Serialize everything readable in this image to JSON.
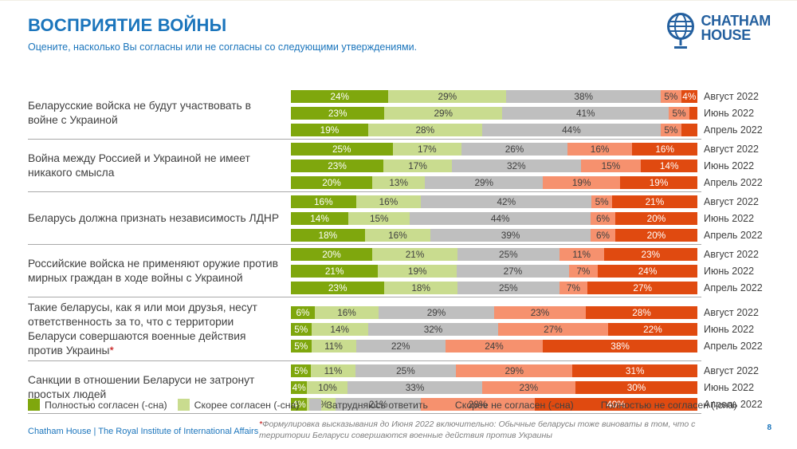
{
  "header": {
    "title": "ВОСПРИЯТИЕ ВОЙНЫ",
    "subtitle": "Оцените, насколько Вы согласны или не согласны со следующими утверждениями.",
    "logo_line1": "CHATHAM",
    "logo_line2": "HOUSE"
  },
  "colors": {
    "accent_blue": "#1b75bc",
    "logo_blue": "#24609f",
    "text_dark": "#404040",
    "divider_gray": "#a9a9a9",
    "footnote_gray": "#7f7f7f",
    "asterisk_red": "#c00000"
  },
  "chart_data": {
    "type": "bar",
    "stacked": true,
    "orientation": "horizontal",
    "unit": "%",
    "series_names": [
      "Полностью согласен (-сна)",
      "Скорее согласен (-сна)",
      "Затрудняюсь ответить",
      "Скорее не согласен (-сна)",
      "Полностью не согласен (-сна)"
    ],
    "series_colors": [
      "#7fa70d",
      "#c9dc8f",
      "#bfbfbf",
      "#f6916e",
      "#e04a10"
    ],
    "series_label_colors": [
      "#ffffff",
      "#404040",
      "#404040",
      "#404040",
      "#ffffff"
    ],
    "legend_position": "bottom",
    "groups": [
      {
        "label": "Беларусские войска не будут участвовать в войне с Украиной",
        "asterisk": "",
        "rows": [
          {
            "period": "Август 2022",
            "values": [
              24,
              29,
              38,
              5,
              4
            ],
            "labels": [
              "24%",
              "29%",
              "38%",
              "5%",
              "4%"
            ]
          },
          {
            "period": "Июнь 2022",
            "values": [
              23,
              29,
              41,
              5,
              2
            ],
            "labels": [
              "23%",
              "29%",
              "41%",
              "5%",
              ""
            ]
          },
          {
            "period": "Апрель 2022",
            "values": [
              19,
              28,
              44,
              5,
              4
            ],
            "labels": [
              "19%",
              "28%",
              "44%",
              "5%",
              ""
            ]
          }
        ]
      },
      {
        "label": "Война между Россией и Украиной не имеет никакого смысла",
        "asterisk": "",
        "rows": [
          {
            "period": "Август 2022",
            "values": [
              25,
              17,
              26,
              16,
              16
            ],
            "labels": [
              "25%",
              "17%",
              "26%",
              "16%",
              "16%"
            ]
          },
          {
            "period": "Июнь 2022",
            "values": [
              23,
              17,
              32,
              15,
              14
            ],
            "labels": [
              "23%",
              "17%",
              "32%",
              "15%",
              "14%"
            ]
          },
          {
            "period": "Апрель 2022",
            "values": [
              20,
              13,
              29,
              19,
              19
            ],
            "labels": [
              "20%",
              "13%",
              "29%",
              "19%",
              "19%"
            ]
          }
        ]
      },
      {
        "label": "Беларусь должна признать независимость ЛДНР",
        "asterisk": "",
        "rows": [
          {
            "period": "Август 2022",
            "values": [
              16,
              16,
              42,
              5,
              21
            ],
            "labels": [
              "16%",
              "16%",
              "42%",
              "5%",
              "21%"
            ]
          },
          {
            "period": "Июнь 2022",
            "values": [
              14,
              15,
              44,
              6,
              20
            ],
            "labels": [
              "14%",
              "15%",
              "44%",
              "6%",
              "20%"
            ]
          },
          {
            "period": "Апрель 2022",
            "values": [
              18,
              16,
              39,
              6,
              20
            ],
            "labels": [
              "18%",
              "16%",
              "39%",
              "6%",
              "20%"
            ]
          }
        ]
      },
      {
        "label": "Российские войска не применяют оружие против мирных граждан в ходе войны с Украиной",
        "asterisk": "",
        "rows": [
          {
            "period": "Август 2022",
            "values": [
              20,
              21,
              25,
              11,
              23
            ],
            "labels": [
              "20%",
              "21%",
              "25%",
              "11%",
              "23%"
            ]
          },
          {
            "period": "Июнь 2022",
            "values": [
              21,
              19,
              27,
              7,
              24
            ],
            "labels": [
              "21%",
              "19%",
              "27%",
              "7%",
              "24%"
            ]
          },
          {
            "period": "Апрель 2022",
            "values": [
              23,
              18,
              25,
              7,
              27
            ],
            "labels": [
              "23%",
              "18%",
              "25%",
              "7%",
              "27%"
            ]
          }
        ]
      },
      {
        "label": "Такие беларусы, как я или мои друзья, несут ответственность за то, что с территории Беларуси совершаются военные действия против Украины",
        "asterisk": "*",
        "rows": [
          {
            "period": "Август 2022",
            "values": [
              6,
              16,
              29,
              23,
              28
            ],
            "labels": [
              "6%",
              "16%",
              "29%",
              "23%",
              "28%"
            ]
          },
          {
            "period": "Июнь 2022",
            "values": [
              5,
              14,
              32,
              27,
              22
            ],
            "labels": [
              "5%",
              "14%",
              "32%",
              "27%",
              "22%"
            ]
          },
          {
            "period": "Апрель 2022",
            "values": [
              5,
              11,
              22,
              24,
              38
            ],
            "labels": [
              "5%",
              "11%",
              "22%",
              "24%",
              "38%"
            ]
          }
        ]
      },
      {
        "label": "Санкции в отношении Беларуси не затронут простых людей",
        "asterisk": "",
        "rows": [
          {
            "period": "Август 2022",
            "values": [
              5,
              11,
              25,
              29,
              31
            ],
            "labels": [
              "5%",
              "11%",
              "25%",
              "29%",
              "31%"
            ]
          },
          {
            "period": "Июнь 2022",
            "values": [
              4,
              10,
              33,
              23,
              30
            ],
            "labels": [
              "4%",
              "10%",
              "33%",
              "23%",
              "30%"
            ]
          },
          {
            "period": "Апрель 2022",
            "values": [
              4,
              7,
              21,
              28,
              40
            ],
            "labels": [
              "4%",
              "7%",
              "21%",
              "28%",
              "40%"
            ]
          }
        ]
      }
    ]
  },
  "footer": {
    "org": "Chatham House  |  The Royal Institute of International Affairs",
    "footnote_asterisk": "*",
    "footnote_text": "Формулировка высказывания до Июня 2022 включительно: Обычные беларусы тоже виноваты в том, что с территории Беларуси совершаются военные действия против Украины",
    "page_number": "8"
  }
}
